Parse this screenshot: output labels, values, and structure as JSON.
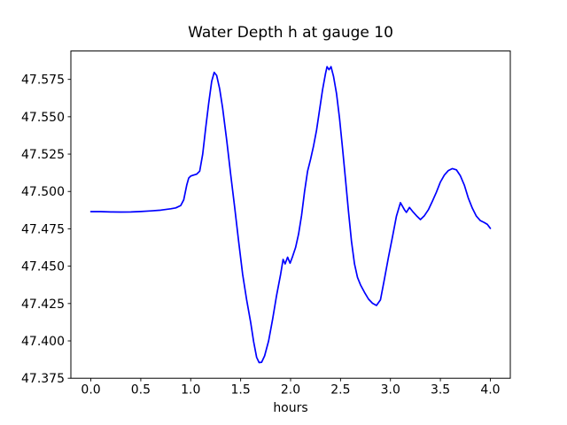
{
  "figure": {
    "background": "#ffffff",
    "frame_color": "#000000",
    "tick_color": "#000000",
    "text_color": "#000000"
  },
  "chart_data": {
    "type": "line",
    "title": "Water Depth h at gauge 10",
    "xlabel": "hours",
    "ylabel": "",
    "xlim": [
      -0.2,
      4.2
    ],
    "ylim": [
      47.375,
      47.594
    ],
    "grid": false,
    "legend": "none",
    "line_color": "#0000ff",
    "line_width": 1.7,
    "xticks": {
      "values": [
        0.0,
        0.5,
        1.0,
        1.5,
        2.0,
        2.5,
        3.0,
        3.5,
        4.0
      ],
      "labels": [
        "0.0",
        "0.5",
        "1.0",
        "1.5",
        "2.0",
        "2.5",
        "3.0",
        "3.5",
        "4.0"
      ]
    },
    "yticks": {
      "values": [
        47.375,
        47.4,
        47.425,
        47.45,
        47.475,
        47.5,
        47.525,
        47.55,
        47.575
      ],
      "labels": [
        "47.375",
        "47.400",
        "47.425",
        "47.450",
        "47.475",
        "47.500",
        "47.525",
        "47.550",
        "47.575"
      ]
    },
    "series": [
      {
        "name": "h",
        "points": [
          [
            0.0,
            47.4865
          ],
          [
            0.1,
            47.4865
          ],
          [
            0.2,
            47.4863
          ],
          [
            0.3,
            47.4862
          ],
          [
            0.4,
            47.4863
          ],
          [
            0.5,
            47.4866
          ],
          [
            0.6,
            47.487
          ],
          [
            0.7,
            47.4875
          ],
          [
            0.8,
            47.4884
          ],
          [
            0.85,
            47.489
          ],
          [
            0.9,
            47.4906
          ],
          [
            0.93,
            47.4944
          ],
          [
            0.96,
            47.5042
          ],
          [
            0.98,
            47.509
          ],
          [
            1.0,
            47.5103
          ],
          [
            1.03,
            47.511
          ],
          [
            1.06,
            47.5116
          ],
          [
            1.09,
            47.5136
          ],
          [
            1.12,
            47.525
          ],
          [
            1.15,
            47.5425
          ],
          [
            1.18,
            47.559
          ],
          [
            1.21,
            47.5737
          ],
          [
            1.235,
            47.5797
          ],
          [
            1.26,
            47.5776
          ],
          [
            1.29,
            47.5686
          ],
          [
            1.32,
            47.5556
          ],
          [
            1.36,
            47.5345
          ],
          [
            1.4,
            47.5115
          ],
          [
            1.44,
            47.4895
          ],
          [
            1.48,
            47.4665
          ],
          [
            1.52,
            47.4445
          ],
          [
            1.56,
            47.4275
          ],
          [
            1.6,
            47.4125
          ],
          [
            1.63,
            47.3995
          ],
          [
            1.66,
            47.389
          ],
          [
            1.685,
            47.3855
          ],
          [
            1.71,
            47.3857
          ],
          [
            1.74,
            47.39
          ],
          [
            1.78,
            47.4
          ],
          [
            1.82,
            47.4145
          ],
          [
            1.86,
            47.4305
          ],
          [
            1.9,
            47.4445
          ],
          [
            1.925,
            47.4545
          ],
          [
            1.945,
            47.4515
          ],
          [
            1.97,
            47.456
          ],
          [
            1.995,
            47.452
          ],
          [
            2.02,
            47.4565
          ],
          [
            2.05,
            47.4625
          ],
          [
            2.08,
            47.4715
          ],
          [
            2.11,
            47.484
          ],
          [
            2.14,
            47.5
          ],
          [
            2.17,
            47.5135
          ],
          [
            2.2,
            47.5215
          ],
          [
            2.23,
            47.5305
          ],
          [
            2.26,
            47.541
          ],
          [
            2.29,
            47.5545
          ],
          [
            2.32,
            47.568
          ],
          [
            2.35,
            47.579
          ],
          [
            2.365,
            47.5835
          ],
          [
            2.385,
            47.5815
          ],
          [
            2.405,
            47.5835
          ],
          [
            2.43,
            47.577
          ],
          [
            2.46,
            47.5655
          ],
          [
            2.49,
            47.549
          ],
          [
            2.52,
            47.529
          ],
          [
            2.55,
            47.508
          ],
          [
            2.58,
            47.4865
          ],
          [
            2.61,
            47.4665
          ],
          [
            2.64,
            47.4515
          ],
          [
            2.67,
            47.4425
          ],
          [
            2.7,
            47.4375
          ],
          [
            2.74,
            47.4325
          ],
          [
            2.78,
            47.428
          ],
          [
            2.82,
            47.4252
          ],
          [
            2.86,
            47.4237
          ],
          [
            2.9,
            47.4275
          ],
          [
            2.94,
            47.4415
          ],
          [
            2.98,
            47.456
          ],
          [
            3.02,
            47.4695
          ],
          [
            3.06,
            47.4835
          ],
          [
            3.1,
            47.4925
          ],
          [
            3.14,
            47.4878
          ],
          [
            3.16,
            47.486
          ],
          [
            3.19,
            47.4893
          ],
          [
            3.22,
            47.4868
          ],
          [
            3.26,
            47.4838
          ],
          [
            3.3,
            47.4812
          ],
          [
            3.34,
            47.4838
          ],
          [
            3.38,
            47.4878
          ],
          [
            3.42,
            47.4935
          ],
          [
            3.46,
            47.4995
          ],
          [
            3.5,
            47.5063
          ],
          [
            3.54,
            47.511
          ],
          [
            3.58,
            47.514
          ],
          [
            3.62,
            47.5153
          ],
          [
            3.66,
            47.5145
          ],
          [
            3.7,
            47.5105
          ],
          [
            3.74,
            47.5042
          ],
          [
            3.78,
            47.4955
          ],
          [
            3.82,
            47.4888
          ],
          [
            3.86,
            47.4835
          ],
          [
            3.9,
            47.4805
          ],
          [
            3.94,
            47.4792
          ],
          [
            3.97,
            47.478
          ],
          [
            4.0,
            47.4753
          ]
        ]
      }
    ]
  }
}
